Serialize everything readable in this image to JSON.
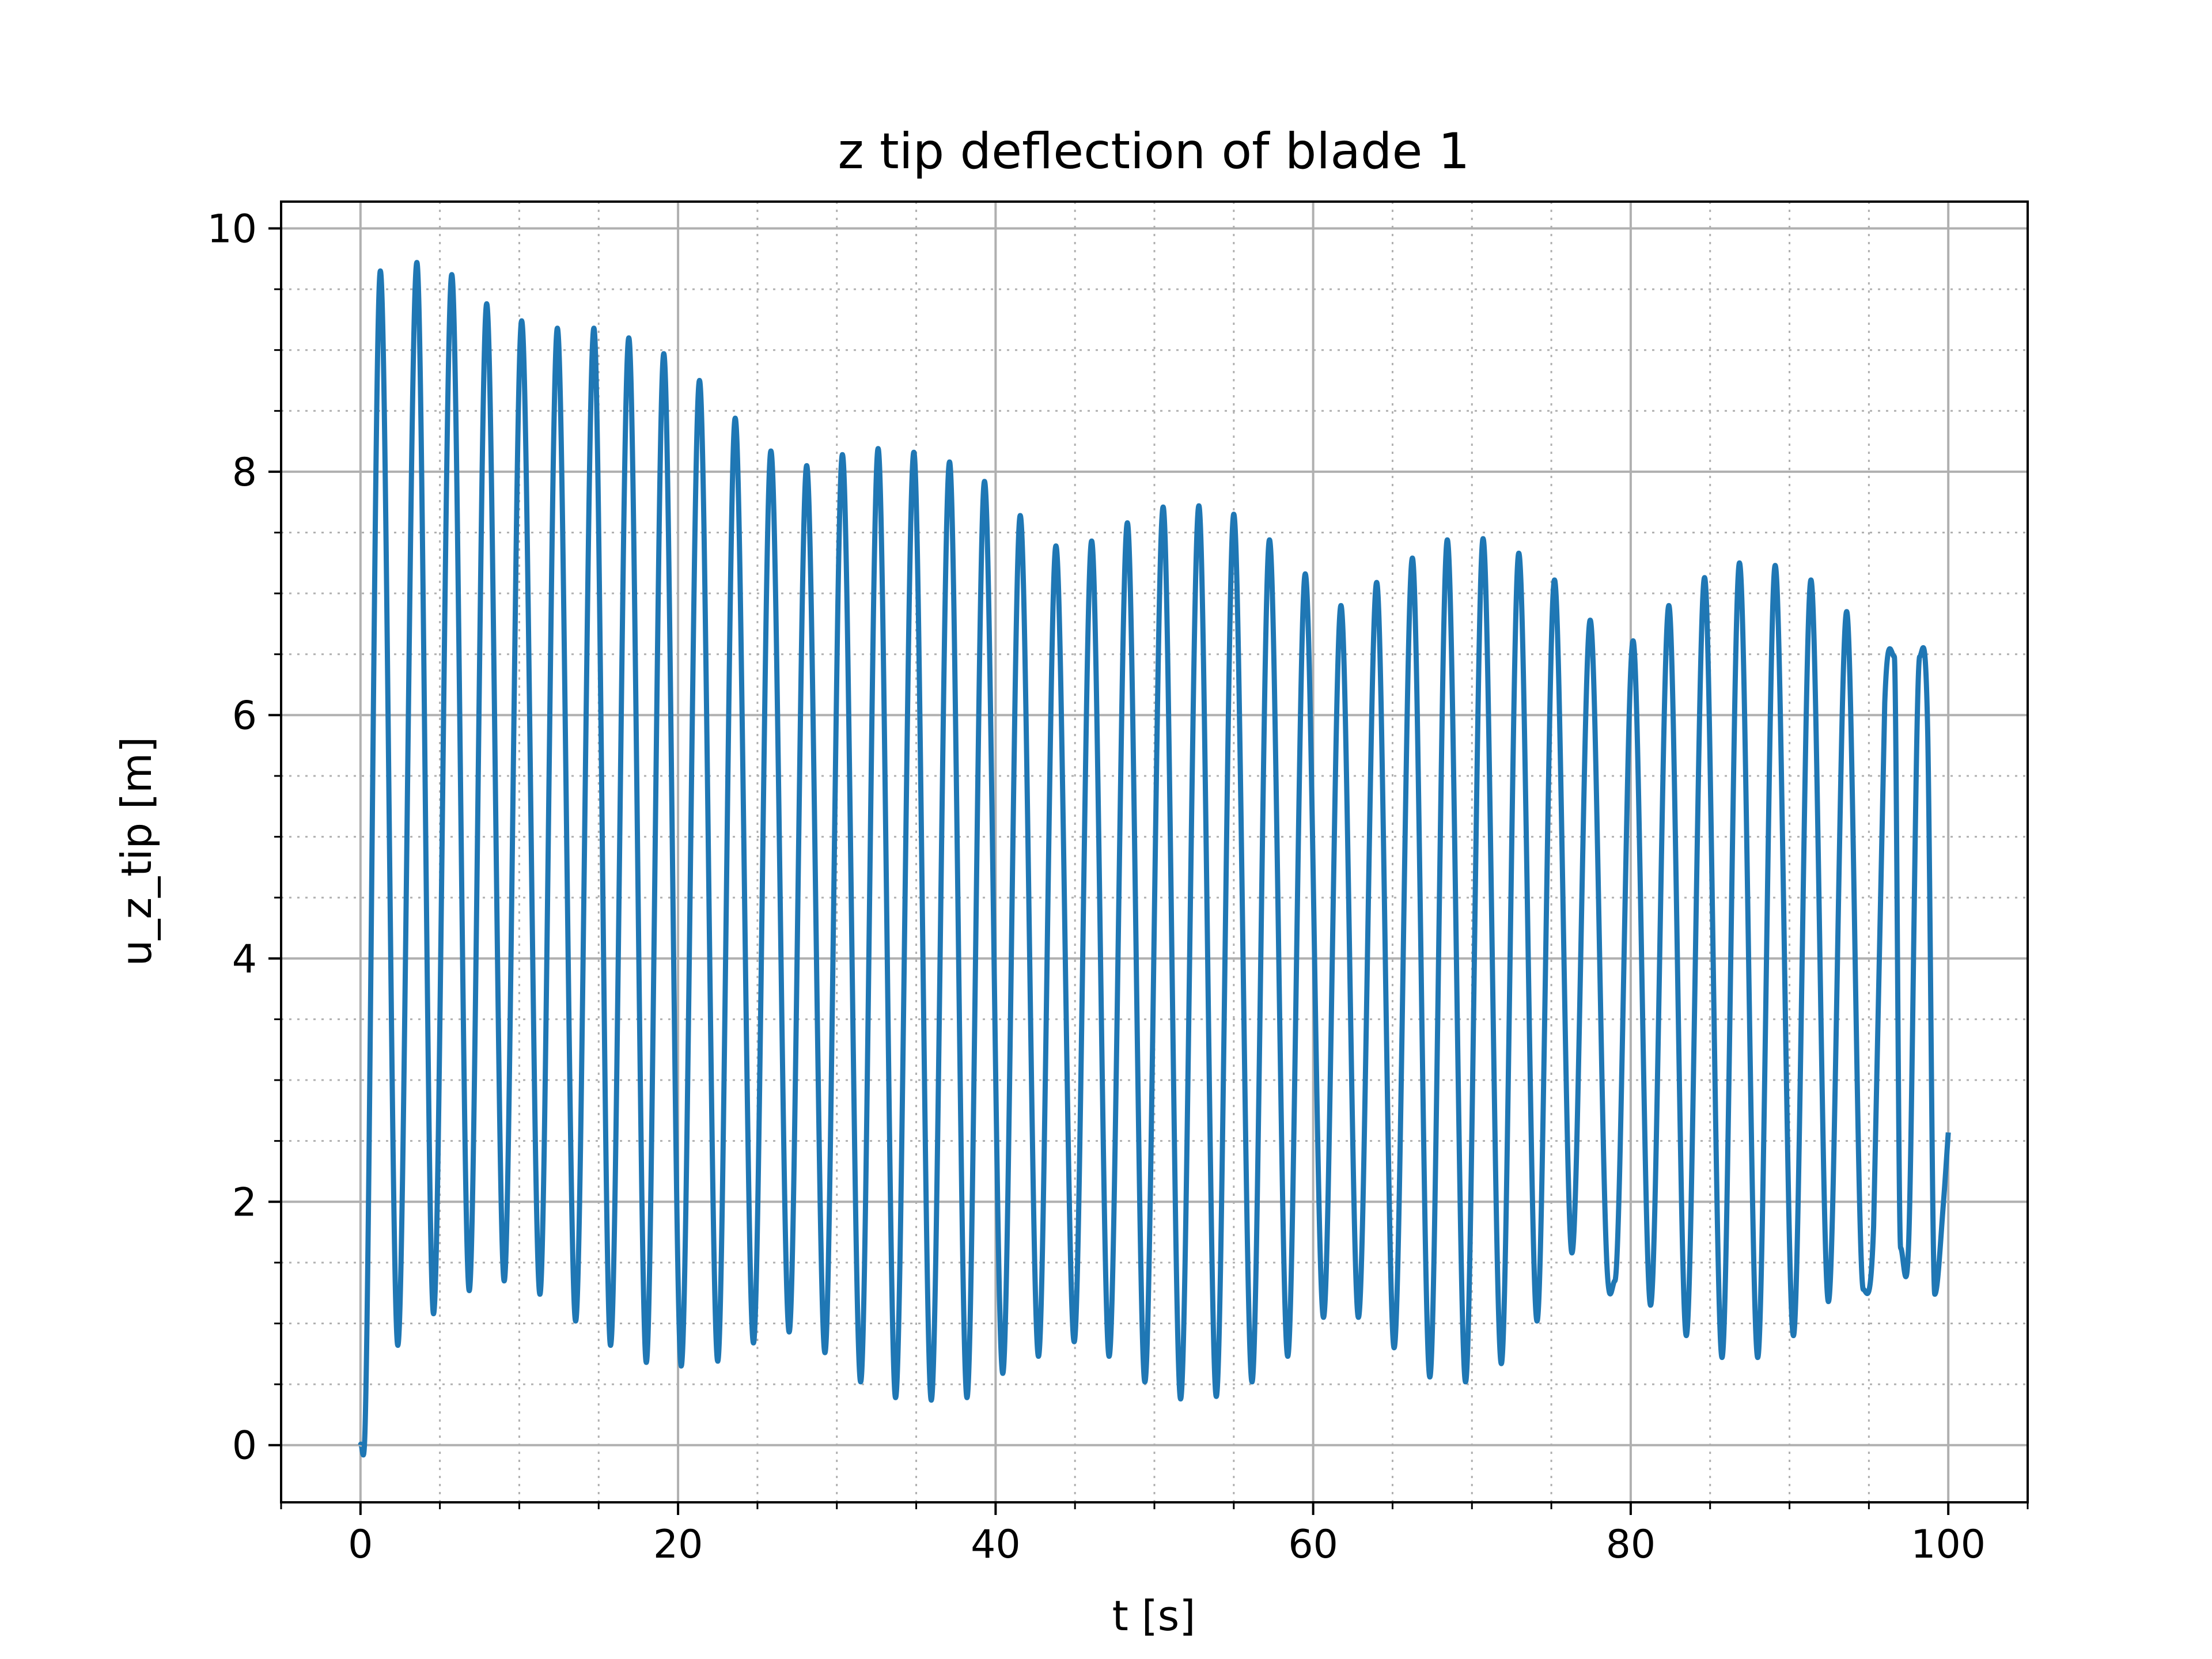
{
  "chart_data": {
    "type": "line",
    "title": "z tip deflection of blade 1",
    "xlabel": "t [s]",
    "ylabel": "u_z_tip [m]",
    "xlim": [
      -5,
      105
    ],
    "ylim": [
      -0.47,
      10.22
    ],
    "xticks": [
      0,
      20,
      40,
      60,
      80,
      100
    ],
    "xtick_labels": [
      "0",
      "20",
      "40",
      "60",
      "80",
      "100"
    ],
    "yticks": [
      0,
      2,
      4,
      6,
      8,
      10
    ],
    "ytick_labels": [
      "0",
      "2",
      "4",
      "6",
      "8",
      "10"
    ],
    "grid": "major solid, minor dotted",
    "line_color": "#1f77b4",
    "series": [
      {
        "x": [
          0.0,
          0.3,
          1.25,
          2.35,
          3.55,
          4.6,
          5.75,
          6.85,
          7.95,
          9.05,
          10.15,
          11.3,
          12.4,
          13.55,
          14.7,
          15.75,
          16.9,
          18.0,
          19.1,
          20.2,
          21.35,
          22.5,
          23.6,
          24.75,
          25.85,
          27.0,
          28.1,
          29.25,
          30.35,
          31.5,
          32.6,
          33.7,
          34.85,
          35.95,
          37.1,
          38.2,
          39.3,
          40.45,
          41.55,
          42.7,
          43.8,
          44.95,
          46.05,
          47.15,
          48.3,
          49.4,
          50.55,
          51.65,
          52.8,
          53.9,
          55.0,
          56.15,
          57.25,
          58.4,
          59.5,
          60.65,
          61.75,
          62.85,
          64.0,
          65.1,
          66.25,
          67.35,
          68.45,
          69.6,
          70.7,
          71.85,
          72.95,
          74.1,
          75.2,
          76.3,
          77.45,
          78.5,
          79.0,
          80.15,
          81.25,
          82.4,
          83.5,
          84.65,
          85.75,
          86.85,
          88.0,
          89.1,
          90.25,
          91.35,
          92.45,
          93.6,
          94.65,
          95.3,
          96.0,
          96.6,
          97.0,
          97.5,
          98.2,
          98.7,
          99.15,
          99.7,
          100.0
        ],
        "y": [
          0.0,
          0.2,
          9.65,
          0.82,
          9.72,
          1.08,
          9.62,
          1.27,
          9.38,
          1.35,
          9.24,
          1.24,
          9.18,
          1.02,
          9.18,
          0.82,
          9.1,
          0.68,
          8.97,
          0.65,
          8.75,
          0.69,
          8.44,
          0.84,
          8.17,
          0.93,
          8.05,
          0.76,
          8.14,
          0.52,
          8.19,
          0.39,
          8.16,
          0.37,
          8.08,
          0.39,
          7.92,
          0.59,
          7.64,
          0.73,
          7.39,
          0.85,
          7.43,
          0.73,
          7.58,
          0.52,
          7.71,
          0.38,
          7.72,
          0.4,
          7.65,
          0.52,
          7.44,
          0.73,
          7.16,
          1.05,
          6.9,
          1.05,
          7.09,
          0.8,
          7.29,
          0.56,
          7.44,
          0.52,
          7.45,
          0.67,
          7.33,
          1.02,
          7.11,
          1.58,
          6.78,
          1.48,
          1.35,
          6.61,
          1.15,
          6.9,
          0.9,
          7.13,
          0.72,
          7.25,
          0.72,
          7.23,
          0.9,
          7.11,
          1.18,
          6.85,
          1.28,
          1.8,
          6.1,
          6.48,
          1.62,
          1.65,
          6.48,
          5.9,
          1.24,
          2.0,
          2.57
        ]
      }
    ]
  }
}
